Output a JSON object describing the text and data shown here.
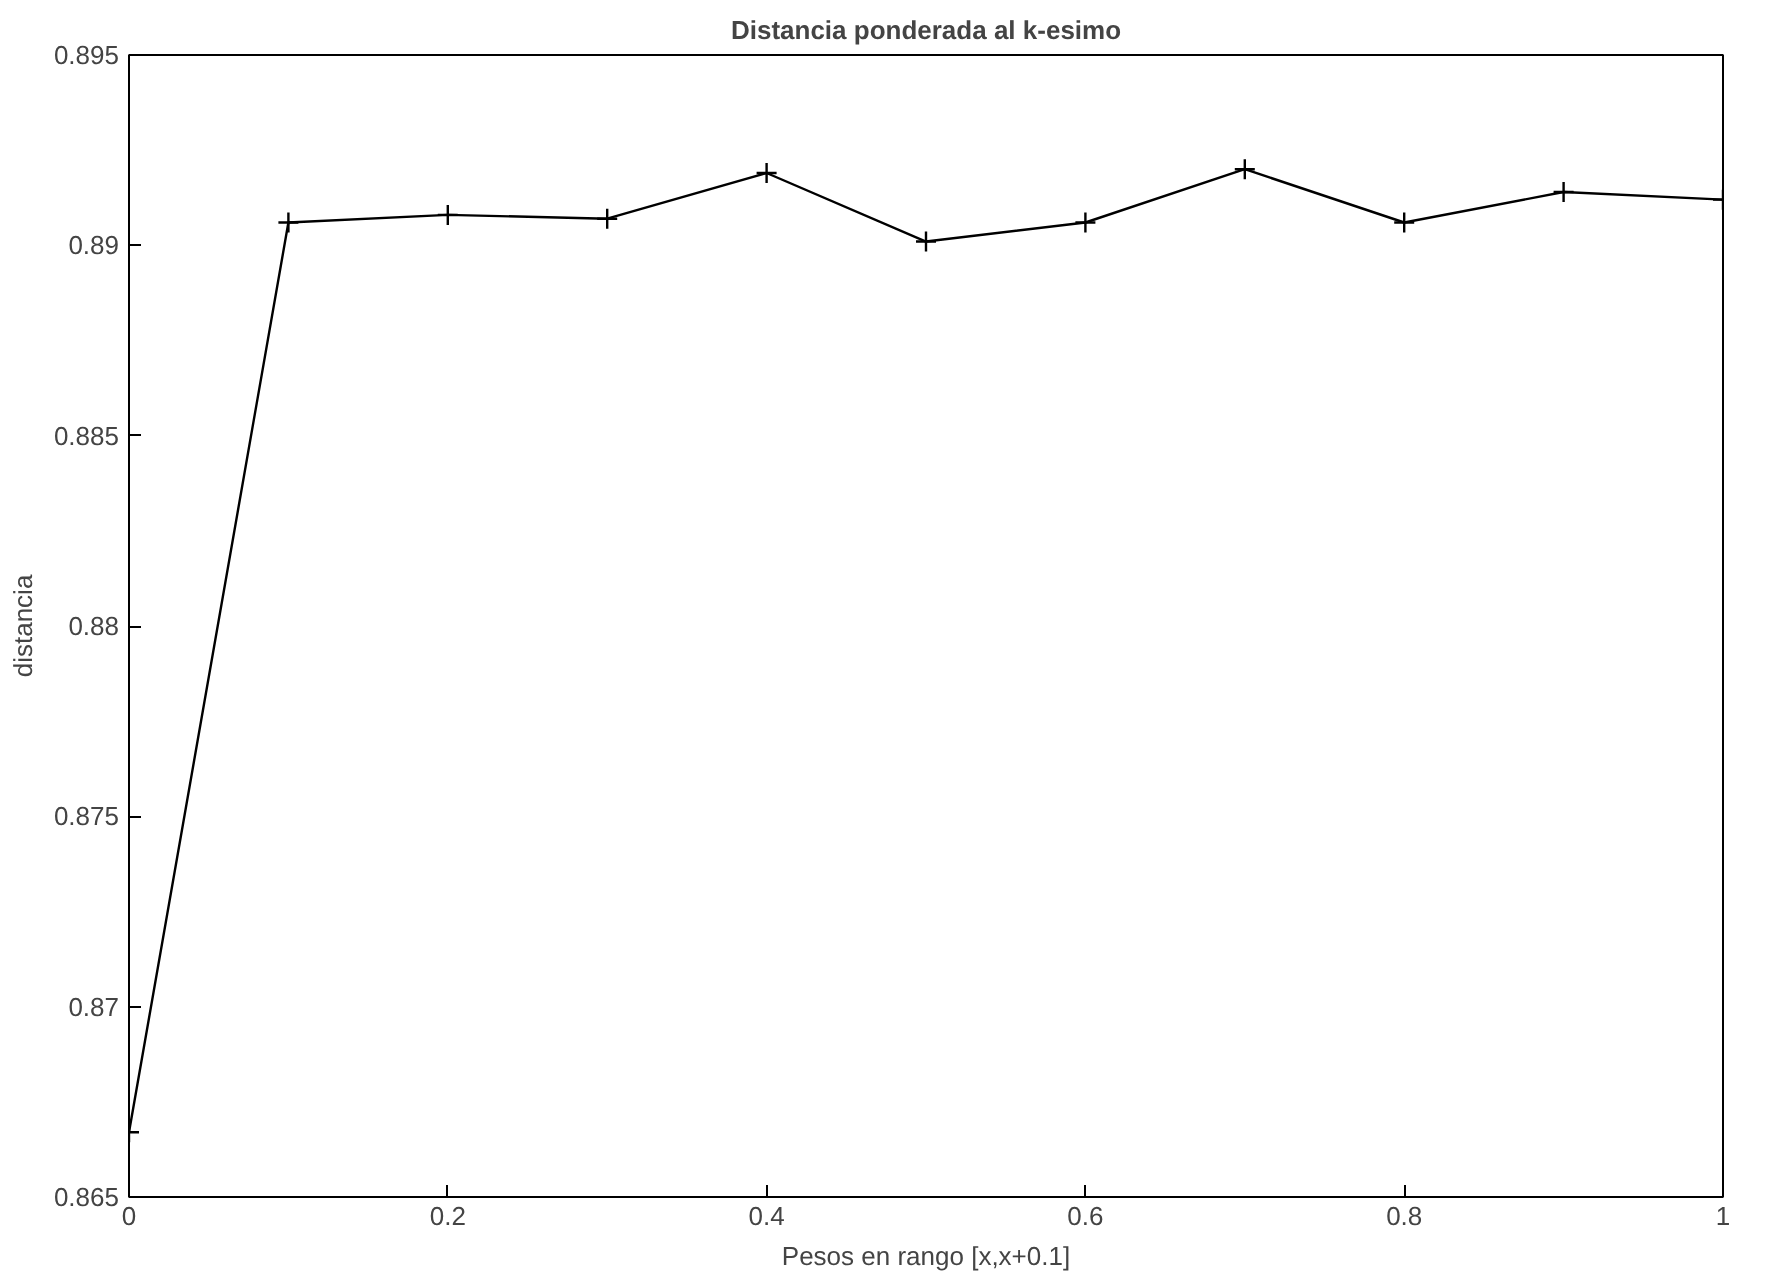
{
  "chart_data": {
    "type": "line",
    "title": "Distancia ponderada al k-esimo",
    "xlabel": "Pesos en rango [x,x+0.1]",
    "ylabel": "distancia",
    "x": [
      0,
      0.1,
      0.2,
      0.3,
      0.4,
      0.5,
      0.6,
      0.7,
      0.8,
      0.9,
      1.0
    ],
    "series": [
      {
        "color": "#000000",
        "values": [
          0.8667,
          0.8906,
          0.8908,
          0.8907,
          0.8919,
          0.8901,
          0.8906,
          0.892,
          0.8906,
          0.8914,
          0.8912
        ]
      }
    ],
    "xlim": [
      0,
      1
    ],
    "ylim": [
      0.865,
      0.895
    ],
    "xticks": [
      0,
      0.2,
      0.4,
      0.6,
      0.8,
      1
    ],
    "yticks": [
      0.865,
      0.87,
      0.875,
      0.88,
      0.885,
      0.89,
      0.895
    ],
    "marker": "cross",
    "grid": false
  }
}
